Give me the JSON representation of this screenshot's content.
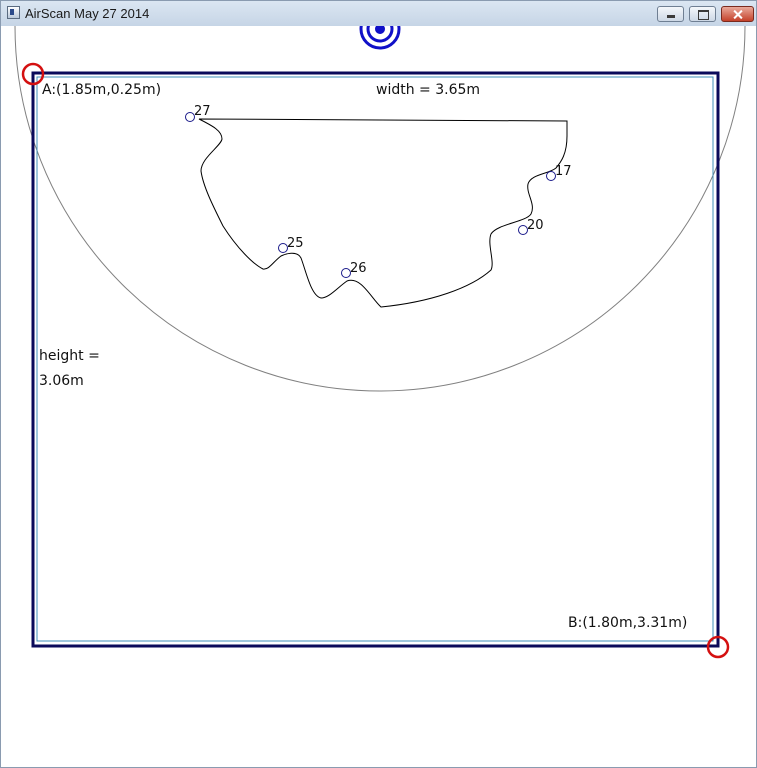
{
  "window": {
    "title": "AirScan May 27 2014"
  },
  "scan": {
    "corner_a_label": "A:(1.85m,0.25m)",
    "corner_b_label": "B:(1.80m,3.31m)",
    "width_label": "width = 3.65m",
    "height_label_line1": "height =",
    "height_label_line2": "3.06m",
    "markers": [
      {
        "id": "27"
      },
      {
        "id": "17"
      },
      {
        "id": "20"
      },
      {
        "id": "25"
      },
      {
        "id": "26"
      }
    ]
  },
  "colors": {
    "room_border": "#0a0a5a",
    "inner_border": "#3f8fb8",
    "corner_handle": "#d41010",
    "sensor": "#1010c8",
    "range_arc": "#808080",
    "scan_path": "#000000"
  }
}
